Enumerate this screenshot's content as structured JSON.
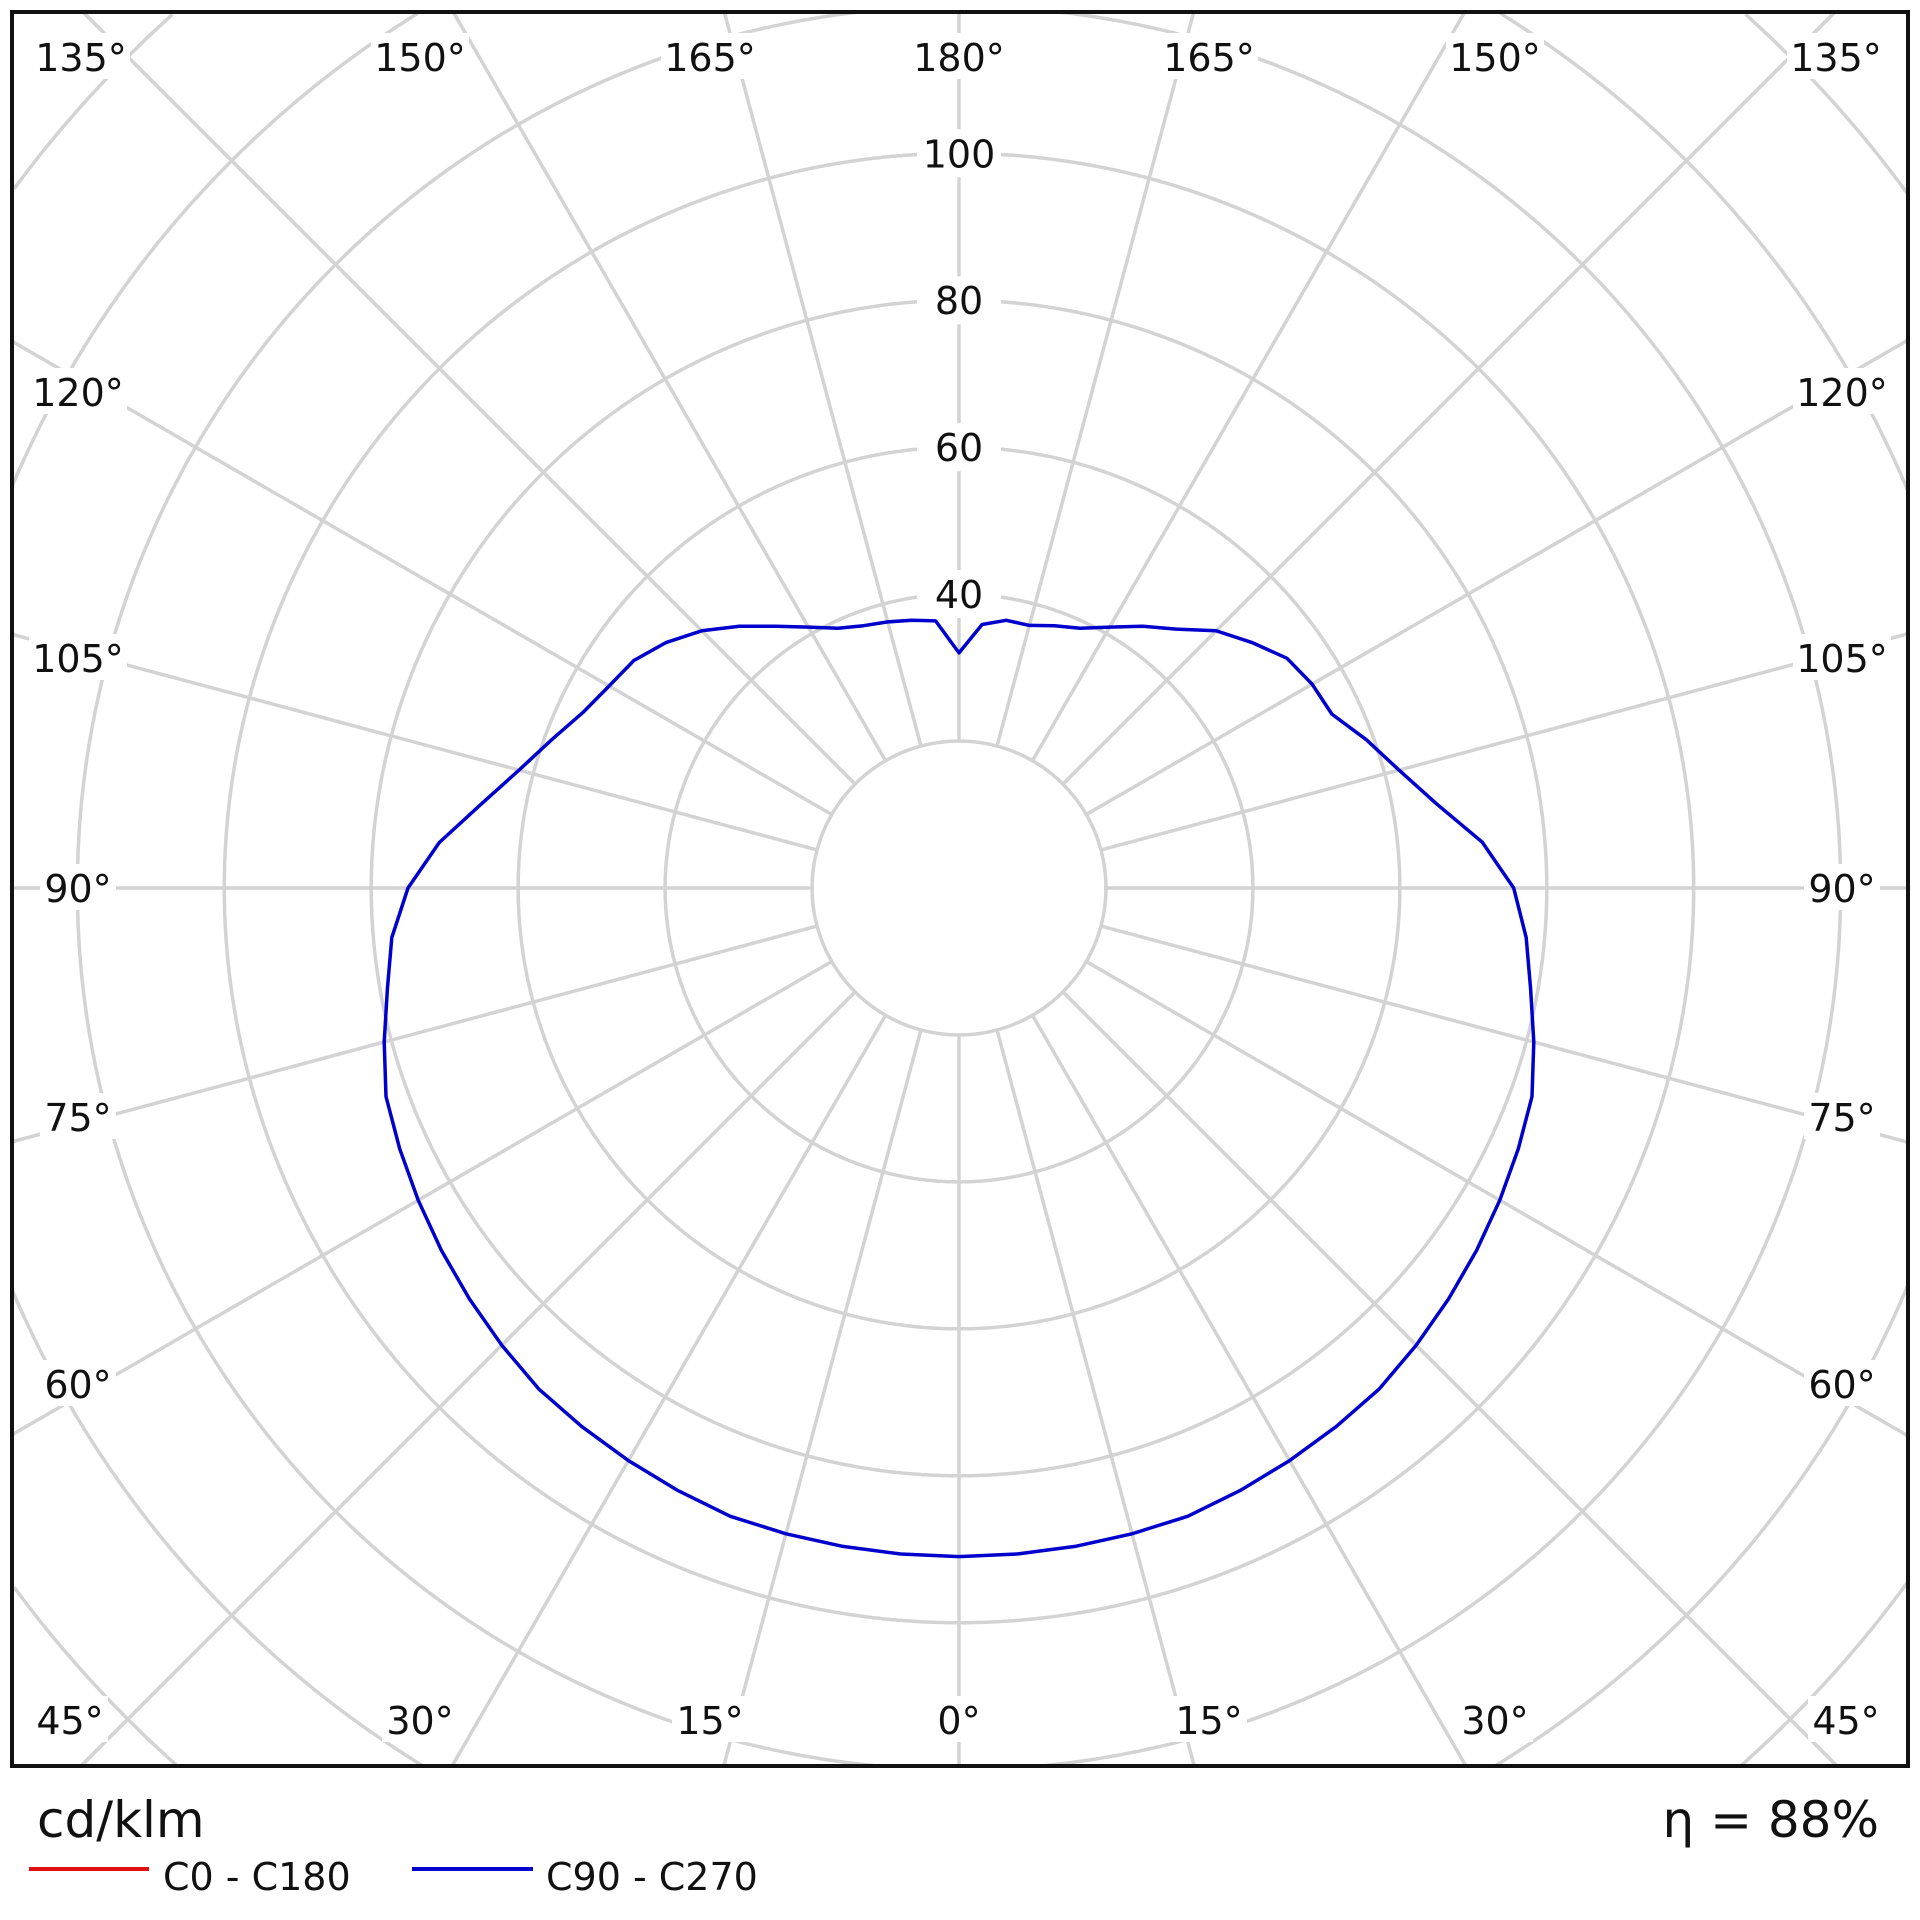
{
  "chart_data": {
    "type": "polar-line",
    "unit_label": "cd/klm",
    "efficiency_label": "η = 88%",
    "radial_ticks": [
      40,
      60,
      80,
      100
    ],
    "radial_grid": [
      20,
      40,
      60,
      80,
      100,
      120,
      140,
      160,
      180
    ],
    "angle_step_deg": 15,
    "angle_labels": {
      "top": [
        "135°",
        "150°",
        "165°",
        "180°",
        "165°",
        "150°",
        "135°"
      ],
      "left": [
        "120°",
        "105°",
        "90°",
        "75°",
        "60°"
      ],
      "right": [
        "120°",
        "105°",
        "90°",
        "75°",
        "60°"
      ],
      "bottom": [
        "45°",
        "30°",
        "15°",
        "0°",
        "15°",
        "30°",
        "45°"
      ]
    },
    "grid": true,
    "legend_position": "bottom-left",
    "angles_deg": [
      0,
      5,
      10,
      15,
      20,
      25,
      30,
      35,
      40,
      45,
      50,
      55,
      60,
      65,
      70,
      75,
      80,
      85,
      90,
      95,
      100,
      105,
      110,
      115,
      120,
      125,
      130,
      135,
      140,
      145,
      150,
      155,
      160,
      165,
      170,
      175,
      180
    ],
    "series": [
      {
        "name": "C0 - C180",
        "color": "#e01010",
        "values": []
      },
      {
        "name": "C90 - C270",
        "color": "#0000cc",
        "values_c90": [
          91,
          91,
          91,
          91,
          91,
          90.5,
          90,
          89.5,
          89,
          88,
          87,
          86,
          85,
          84,
          83,
          81,
          79,
          77.5,
          75.5,
          71.5,
          66,
          62,
          59,
          56,
          55.5,
          54.5,
          52,
          49.5,
          46,
          43.5,
          41,
          39,
          38,
          37,
          37,
          36,
          32
        ],
        "values_c270": [
          91,
          91,
          91,
          91,
          91,
          90.5,
          90,
          89.5,
          89,
          88,
          87,
          86,
          85,
          84,
          83,
          81,
          79,
          77.5,
          75,
          71,
          66,
          62,
          59,
          56.5,
          55,
          54,
          52,
          49.5,
          46.5,
          43.5,
          41,
          39,
          38,
          37.5,
          37,
          36.5,
          32
        ]
      }
    ]
  }
}
